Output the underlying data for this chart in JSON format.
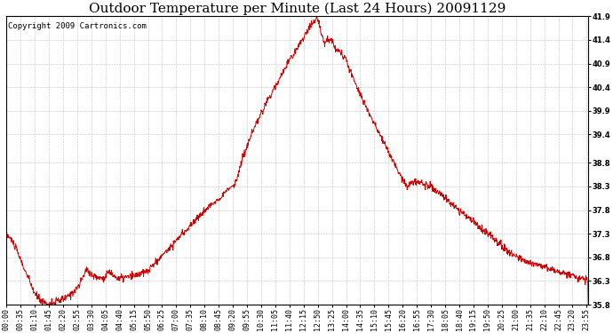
{
  "title": "Outdoor Temperature per Minute (Last 24 Hours) 20091129",
  "copyright_text": "Copyright 2009 Cartronics.com",
  "line_color": "#cc0000",
  "background_color": "#ffffff",
  "grid_color": "#bbbbbb",
  "y_min": 35.8,
  "y_max": 41.9,
  "y_ticks": [
    35.8,
    36.3,
    36.8,
    37.3,
    37.8,
    38.3,
    38.8,
    39.4,
    39.9,
    40.4,
    40.9,
    41.4,
    41.9
  ],
  "x_tick_labels": [
    "00:00",
    "00:35",
    "01:10",
    "01:45",
    "02:20",
    "02:55",
    "03:30",
    "04:05",
    "04:40",
    "05:15",
    "05:50",
    "06:25",
    "07:00",
    "07:35",
    "08:10",
    "08:45",
    "09:20",
    "09:55",
    "10:30",
    "11:05",
    "11:40",
    "12:15",
    "12:50",
    "13:25",
    "14:00",
    "14:35",
    "15:10",
    "15:45",
    "16:20",
    "16:55",
    "17:30",
    "18:05",
    "18:40",
    "19:15",
    "19:50",
    "20:25",
    "21:00",
    "21:35",
    "22:10",
    "22:45",
    "23:20",
    "23:55"
  ],
  "title_fontsize": 11,
  "tick_fontsize": 6,
  "copyright_fontsize": 6.5
}
